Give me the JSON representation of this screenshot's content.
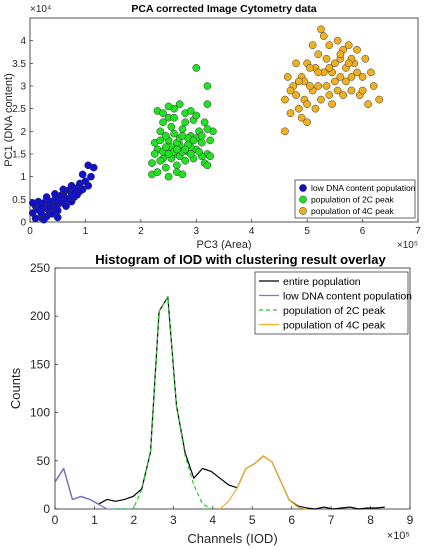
{
  "chart_data": [
    {
      "type": "scatter",
      "title": "PCA corrected Image Cytometry data",
      "xlabel": "PC3 (Area)",
      "ylabel": "PC1 (DNA content)",
      "x_exponent": "×10⁵",
      "y_exponent": "×10⁴",
      "xlim": [
        0,
        7
      ],
      "ylim": [
        0,
        4.5
      ],
      "xticks": [
        "0",
        "1",
        "2",
        "3",
        "4",
        "5",
        "6",
        "7"
      ],
      "yticks": [
        "0",
        "0.5",
        "1",
        "1.5",
        "2",
        "2.5",
        "3",
        "3.5",
        "4"
      ],
      "legend_position": "bottom-right",
      "series": [
        {
          "name": "low DNA content population",
          "color": "#1010cc",
          "points": [
            [
              0.05,
              0.2
            ],
            [
              0.1,
              0.35
            ],
            [
              0.15,
              0.28
            ],
            [
              0.2,
              0.1
            ],
            [
              0.25,
              0.42
            ],
            [
              0.3,
              0.3
            ],
            [
              0.35,
              0.22
            ],
            [
              0.4,
              0.4
            ],
            [
              0.45,
              0.5
            ],
            [
              0.5,
              0.38
            ],
            [
              0.55,
              0.45
            ],
            [
              0.6,
              0.6
            ],
            [
              0.65,
              0.52
            ],
            [
              0.7,
              0.7
            ],
            [
              0.75,
              0.62
            ],
            [
              0.8,
              0.55
            ],
            [
              0.85,
              0.75
            ],
            [
              0.9,
              0.85
            ],
            [
              0.95,
              0.72
            ],
            [
              1.0,
              0.9
            ],
            [
              1.05,
              0.8
            ],
            [
              0.3,
              0.12
            ],
            [
              0.45,
              0.28
            ],
            [
              0.6,
              0.42
            ],
            [
              0.2,
              0.32
            ],
            [
              0.35,
              0.45
            ],
            [
              0.5,
              0.25
            ],
            [
              0.7,
              0.5
            ],
            [
              0.8,
              0.65
            ],
            [
              0.9,
              0.68
            ],
            [
              0.15,
              0.45
            ],
            [
              0.4,
              0.18
            ],
            [
              0.55,
              0.58
            ],
            [
              0.65,
              0.35
            ],
            [
              0.25,
              0.05
            ],
            [
              0.1,
              0.08
            ],
            [
              0.05,
              0.42
            ],
            [
              0.75,
              0.8
            ],
            [
              0.85,
              0.6
            ],
            [
              1.1,
              1.0
            ],
            [
              1.15,
              1.2
            ],
            [
              1.05,
              1.25
            ],
            [
              0.95,
              1.05
            ],
            [
              0.6,
              0.72
            ],
            [
              0.45,
              0.62
            ],
            [
              0.3,
              0.55
            ],
            [
              0.2,
              0.2
            ],
            [
              0.5,
              0.1
            ],
            [
              0.35,
              0.32
            ],
            [
              0.75,
              0.45
            ]
          ]
        },
        {
          "name": "population of 2C peak",
          "color": "#22e022",
          "points": [
            [
              2.2,
              1.3
            ],
            [
              2.3,
              1.6
            ],
            [
              2.4,
              1.4
            ],
            [
              2.5,
              1.8
            ],
            [
              2.6,
              1.5
            ],
            [
              2.7,
              1.7
            ],
            [
              2.8,
              1.35
            ],
            [
              2.9,
              1.9
            ],
            [
              3.0,
              1.6
            ],
            [
              3.1,
              1.75
            ],
            [
              3.2,
              1.5
            ],
            [
              2.35,
              2.0
            ],
            [
              2.45,
              1.2
            ],
            [
              2.55,
              2.1
            ],
            [
              2.65,
              1.25
            ],
            [
              2.75,
              2.05
            ],
            [
              2.85,
              1.55
            ],
            [
              2.95,
              1.4
            ],
            [
              3.05,
              2.0
            ],
            [
              3.15,
              1.3
            ],
            [
              2.25,
              1.75
            ],
            [
              2.5,
              2.3
            ],
            [
              2.6,
              1.95
            ],
            [
              2.7,
              1.45
            ],
            [
              2.8,
              2.2
            ],
            [
              2.9,
              1.65
            ],
            [
              3.0,
              1.85
            ],
            [
              3.1,
              1.45
            ],
            [
              2.4,
              1.55
            ],
            [
              2.55,
              1.65
            ],
            [
              2.65,
              1.75
            ],
            [
              2.75,
              1.55
            ],
            [
              2.85,
              1.85
            ],
            [
              2.45,
              1.9
            ],
            [
              2.35,
              1.35
            ],
            [
              2.95,
              2.25
            ],
            [
              3.05,
              1.55
            ],
            [
              2.6,
              2.5
            ],
            [
              2.7,
              2.6
            ],
            [
              2.8,
              2.4
            ],
            [
              2.5,
              2.55
            ],
            [
              2.3,
              2.45
            ],
            [
              2.9,
              2.45
            ],
            [
              3.0,
              2.35
            ],
            [
              2.4,
              2.2
            ],
            [
              2.2,
              1.05
            ],
            [
              2.3,
              1.1
            ],
            [
              2.5,
              1.0
            ],
            [
              2.65,
              1.1
            ],
            [
              2.75,
              1.05
            ],
            [
              3.2,
              1.25
            ],
            [
              3.25,
              1.8
            ],
            [
              3.3,
              2.0
            ],
            [
              3.15,
              2.2
            ],
            [
              3.2,
              2.6
            ],
            [
              3.0,
              3.4
            ],
            [
              3.2,
              3.0
            ],
            [
              2.6,
              1.55
            ],
            [
              2.7,
              1.85
            ],
            [
              2.55,
              1.4
            ],
            [
              2.45,
              1.65
            ],
            [
              2.85,
              1.7
            ],
            [
              2.95,
              1.8
            ],
            [
              2.65,
              1.6
            ],
            [
              2.75,
              1.9
            ],
            [
              2.5,
              1.5
            ],
            [
              2.8,
              1.6
            ],
            [
              2.9,
              1.5
            ],
            [
              2.35,
              1.8
            ],
            [
              2.25,
              1.5
            ],
            [
              3.1,
              1.9
            ],
            [
              3.2,
              2.05
            ],
            [
              3.25,
              1.45
            ],
            [
              2.6,
              2.3
            ],
            [
              2.4,
              2.4
            ]
          ]
        },
        {
          "name": "population of 4C peak",
          "color": "#f0b020",
          "points": [
            [
              4.6,
              2.0
            ],
            [
              4.7,
              2.4
            ],
            [
              4.8,
              2.8
            ],
            [
              4.9,
              3.2
            ],
            [
              5.0,
              3.5
            ],
            [
              5.1,
              2.9
            ],
            [
              5.2,
              3.7
            ],
            [
              5.3,
              3.3
            ],
            [
              5.4,
              3.9
            ],
            [
              5.5,
              3.1
            ],
            [
              5.6,
              3.6
            ],
            [
              5.7,
              3.4
            ],
            [
              5.8,
              2.9
            ],
            [
              5.9,
              3.8
            ],
            [
              6.0,
              3.2
            ],
            [
              6.1,
              2.6
            ],
            [
              6.2,
              3.0
            ],
            [
              4.75,
              3.0
            ],
            [
              4.85,
              2.5
            ],
            [
              4.95,
              2.7
            ],
            [
              5.05,
              3.0
            ],
            [
              5.15,
              3.4
            ],
            [
              5.25,
              2.7
            ],
            [
              5.35,
              3.6
            ],
            [
              5.45,
              3.3
            ],
            [
              5.55,
              4.0
            ],
            [
              5.65,
              2.8
            ],
            [
              5.75,
              3.9
            ],
            [
              5.85,
              3.5
            ],
            [
              5.95,
              2.8
            ],
            [
              6.05,
              3.6
            ],
            [
              4.8,
              3.5
            ],
            [
              4.9,
              2.3
            ],
            [
              5.0,
              2.6
            ],
            [
              5.2,
              3.0
            ],
            [
              5.4,
              2.8
            ],
            [
              5.6,
              3.2
            ],
            [
              5.8,
              3.6
            ],
            [
              4.7,
              2.9
            ],
            [
              5.1,
              3.9
            ],
            [
              5.3,
              4.1
            ],
            [
              5.5,
              3.5
            ],
            [
              5.7,
              3.1
            ],
            [
              5.9,
              3.3
            ],
            [
              5.25,
              4.25
            ],
            [
              5.15,
              2.5
            ],
            [
              5.45,
              2.6
            ],
            [
              5.65,
              3.8
            ],
            [
              5.05,
              3.4
            ],
            [
              4.95,
              3.1
            ],
            [
              5.35,
              3.0
            ],
            [
              5.55,
              2.9
            ],
            [
              5.75,
              3.5
            ],
            [
              6.15,
              3.3
            ],
            [
              6.3,
              2.7
            ],
            [
              4.6,
              2.7
            ],
            [
              4.65,
              3.2
            ],
            [
              4.85,
              3.1
            ],
            [
              5.0,
              2.2
            ],
            [
              5.2,
              3.3
            ],
            [
              5.4,
              3.4
            ],
            [
              5.6,
              3.7
            ],
            [
              5.8,
              3.2
            ],
            [
              6.0,
              2.9
            ]
          ]
        }
      ]
    },
    {
      "type": "line",
      "title": "Histogram of IOD with clustering result overlay",
      "xlabel": "Channels (IOD)",
      "ylabel": "Counts",
      "x_exponent": "×10⁵",
      "xlim": [
        0,
        9
      ],
      "ylim": [
        0,
        250
      ],
      "xticks": [
        "0",
        "1",
        "2",
        "3",
        "4",
        "5",
        "6",
        "7",
        "8",
        "9"
      ],
      "yticks": [
        "0",
        "50",
        "100",
        "150",
        "200",
        "250"
      ],
      "legend_position": "top-right",
      "series": [
        {
          "name": "entire population",
          "color": "#000000",
          "dash": false,
          "x": [
            0.0,
            0.22,
            0.44,
            0.66,
            0.88,
            1.1,
            1.32,
            1.54,
            1.76,
            1.98,
            2.2,
            2.42,
            2.64,
            2.86,
            3.08,
            3.3,
            3.52,
            3.74,
            3.96,
            4.18,
            4.4,
            4.62,
            4.84,
            5.06,
            5.28,
            5.5,
            5.72,
            5.94,
            6.16,
            6.38,
            6.6,
            6.82,
            7.04,
            7.26,
            7.48,
            7.7,
            7.92,
            8.14,
            8.36
          ],
          "y": [
            28,
            42,
            10,
            13,
            10,
            5,
            10,
            8,
            10,
            13,
            21,
            59,
            205,
            220,
            107,
            58,
            32,
            42,
            39,
            32,
            25,
            22,
            42,
            47,
            55,
            49,
            29,
            9,
            3,
            1,
            0,
            2,
            0,
            1,
            2,
            0,
            1,
            1,
            2
          ]
        },
        {
          "name": "low DNA content population",
          "color": "#7777cc",
          "dash": false,
          "x": [
            0.0,
            0.22,
            0.44,
            0.66,
            0.88,
            1.1,
            1.32,
            1.54,
            1.76,
            1.98
          ],
          "y": [
            28,
            42,
            10,
            13,
            10,
            5,
            0,
            0,
            0,
            0
          ]
        },
        {
          "name": "population of 2C peak",
          "color": "#22cc22",
          "dash": true,
          "x": [
            1.54,
            1.76,
            1.98,
            2.2,
            2.42,
            2.64,
            2.86,
            3.08,
            3.3,
            3.52,
            3.74,
            3.96
          ],
          "y": [
            0,
            0,
            0,
            20,
            59,
            205,
            220,
            107,
            55,
            25,
            5,
            0
          ]
        },
        {
          "name": "population of 4C peak",
          "color": "#f0b030",
          "dash": false,
          "x": [
            4.18,
            4.4,
            4.62,
            4.84,
            5.06,
            5.28,
            5.5,
            5.72,
            5.94,
            6.16,
            6.38
          ],
          "y": [
            0,
            8,
            22,
            42,
            47,
            55,
            49,
            29,
            9,
            2,
            0
          ]
        }
      ]
    }
  ]
}
